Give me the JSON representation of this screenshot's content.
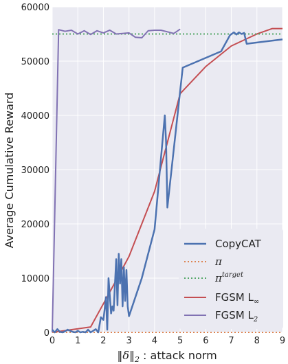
{
  "chart_data": {
    "type": "line",
    "xlabel_math": "‖δ‖",
    "xlabel_sub": "2",
    "xlabel_text": " : attack norm",
    "ylabel": "Average Cumulative Reward",
    "xlim": [
      0,
      9
    ],
    "ylim": [
      0,
      60000
    ],
    "xticks": [
      "0",
      "1",
      "2",
      "3",
      "4",
      "5",
      "6",
      "7",
      "8",
      "9"
    ],
    "yticks": [
      "0",
      "10000",
      "20000",
      "30000",
      "40000",
      "50000",
      "60000"
    ],
    "grid": true,
    "legend_position": "lower-right",
    "background": "#eaeaf2",
    "series": [
      {
        "name": "CopyCAT",
        "color": "#4c72b0",
        "style": "solid",
        "x": [
          0,
          0.1,
          0.2,
          0.3,
          0.4,
          0.5,
          0.6,
          0.7,
          0.8,
          0.9,
          1.0,
          1.1,
          1.2,
          1.3,
          1.4,
          1.5,
          1.6,
          1.7,
          1.8,
          1.9,
          2.0,
          2.1,
          2.15,
          2.2,
          2.3,
          2.35,
          2.4,
          2.5,
          2.55,
          2.6,
          2.65,
          2.7,
          2.75,
          2.8,
          2.85,
          2.9,
          2.95,
          3.0,
          3.5,
          4.0,
          4.4,
          4.45,
          4.5,
          5.1,
          6.6,
          6.95,
          7.1,
          7.2,
          7.3,
          7.4,
          7.5,
          7.6,
          9.0
        ],
        "values": [
          500,
          0,
          600,
          100,
          0,
          200,
          500,
          300,
          100,
          0,
          300,
          0,
          100,
          0,
          500,
          0,
          300,
          600,
          0,
          2800,
          2300,
          6500,
          500,
          10000,
          3500,
          4800,
          4000,
          13500,
          5000,
          14500,
          9000,
          13500,
          4800,
          12000,
          5800,
          11500,
          4800,
          3000,
          10000,
          19000,
          40000,
          35000,
          23000,
          48800,
          51800,
          54800,
          55300,
          54900,
          55300,
          55000,
          55200,
          53200,
          54000
        ]
      },
      {
        "name": "π",
        "color": "#dd8452",
        "style": "dotted",
        "x": [
          0,
          9
        ],
        "values": [
          0,
          0
        ]
      },
      {
        "name": "π",
        "name_sup": "target",
        "color": "#55a868",
        "style": "dotted",
        "x": [
          0,
          9
        ],
        "values": [
          55000,
          55000
        ]
      },
      {
        "name": "FGSM L",
        "name_sub": "∞",
        "color": "#c44e52",
        "style": "solid",
        "x": [
          0,
          1.5,
          2.2,
          3.0,
          4.0,
          5.0,
          6.0,
          7.0,
          8.0,
          8.6,
          9.0
        ],
        "values": [
          0,
          1000,
          7000,
          14000,
          26000,
          44000,
          49000,
          52800,
          55000,
          56000,
          56000
        ]
      },
      {
        "name": "FGSM L",
        "name_sub": "2",
        "color": "#8172b3",
        "style": "solid",
        "x": [
          0,
          0.25,
          0.5,
          0.75,
          1.0,
          1.25,
          1.5,
          1.75,
          2.0,
          2.25,
          2.5,
          2.75,
          3.0,
          3.25,
          3.5,
          3.75,
          4.0,
          4.25,
          4.5,
          4.75,
          5.0
        ],
        "values": [
          0,
          55800,
          55500,
          55700,
          55000,
          55600,
          54900,
          55600,
          55200,
          55700,
          55000,
          55100,
          55200,
          54400,
          54300,
          55600,
          55700,
          55700,
          55400,
          55100,
          55900
        ]
      }
    ]
  }
}
